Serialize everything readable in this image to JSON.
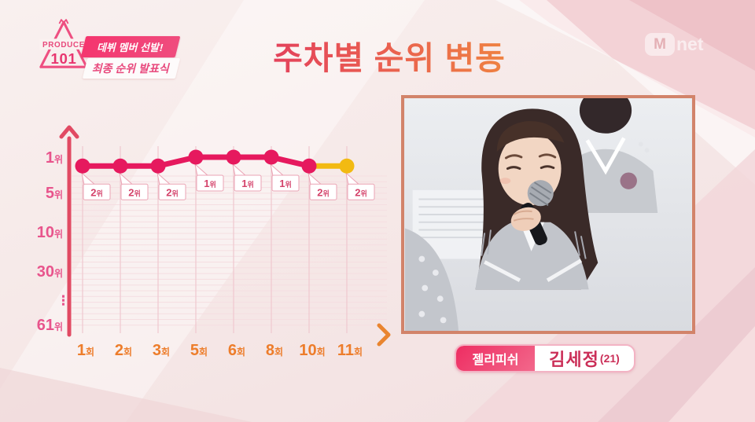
{
  "header": {
    "logo": {
      "line1": "PRODUCE",
      "line2": "101"
    },
    "ribbon": {
      "line1": "데뷔 멤버 선발!",
      "line2": "최종 순위 발표식"
    },
    "title": "주차별 순위 변동",
    "channel_m": "M",
    "channel_net": "net"
  },
  "chart_data": {
    "type": "line",
    "title": "주차별 순위 변동",
    "x": [
      1,
      2,
      3,
      5,
      6,
      8,
      10,
      11
    ],
    "x_tick_labels": [
      "1회",
      "2회",
      "3회",
      "5회",
      "6회",
      "8회",
      "10회",
      "11회"
    ],
    "values": [
      2,
      2,
      2,
      1,
      1,
      1,
      2,
      2
    ],
    "point_labels": [
      "2위",
      "2위",
      "2위",
      "1위",
      "1위",
      "1위",
      "2위",
      "2위"
    ],
    "y_ticks": [
      {
        "num": "1",
        "suffix": "위",
        "rank": 1
      },
      {
        "num": "5",
        "suffix": "위",
        "rank": 5
      },
      {
        "num": "10",
        "suffix": "위",
        "rank": 10
      },
      {
        "num": "30",
        "suffix": "위",
        "rank": 30
      },
      {
        "num": "61",
        "suffix": "위",
        "rank": 61
      }
    ],
    "y_ellipsis": "⋮",
    "y_axis_inverted": true,
    "grid": true,
    "highlight_last_segment": true,
    "colors": {
      "line": "#e6195e",
      "last": "#f2ba12",
      "axis_start": "#e14a63",
      "axis_end": "#e9852f",
      "y_tick": "#e8548c",
      "x_tick": "#ed7d2b",
      "grid_v": "#efc8cf",
      "grid_h": "#f5dee1",
      "callout_border": "#eba3b4",
      "callout_text": "#d4426a",
      "callout_fill": "#ffffff"
    }
  },
  "footer": {
    "agency": "젤리피쉬",
    "name": "김세정",
    "age": "(21)"
  }
}
